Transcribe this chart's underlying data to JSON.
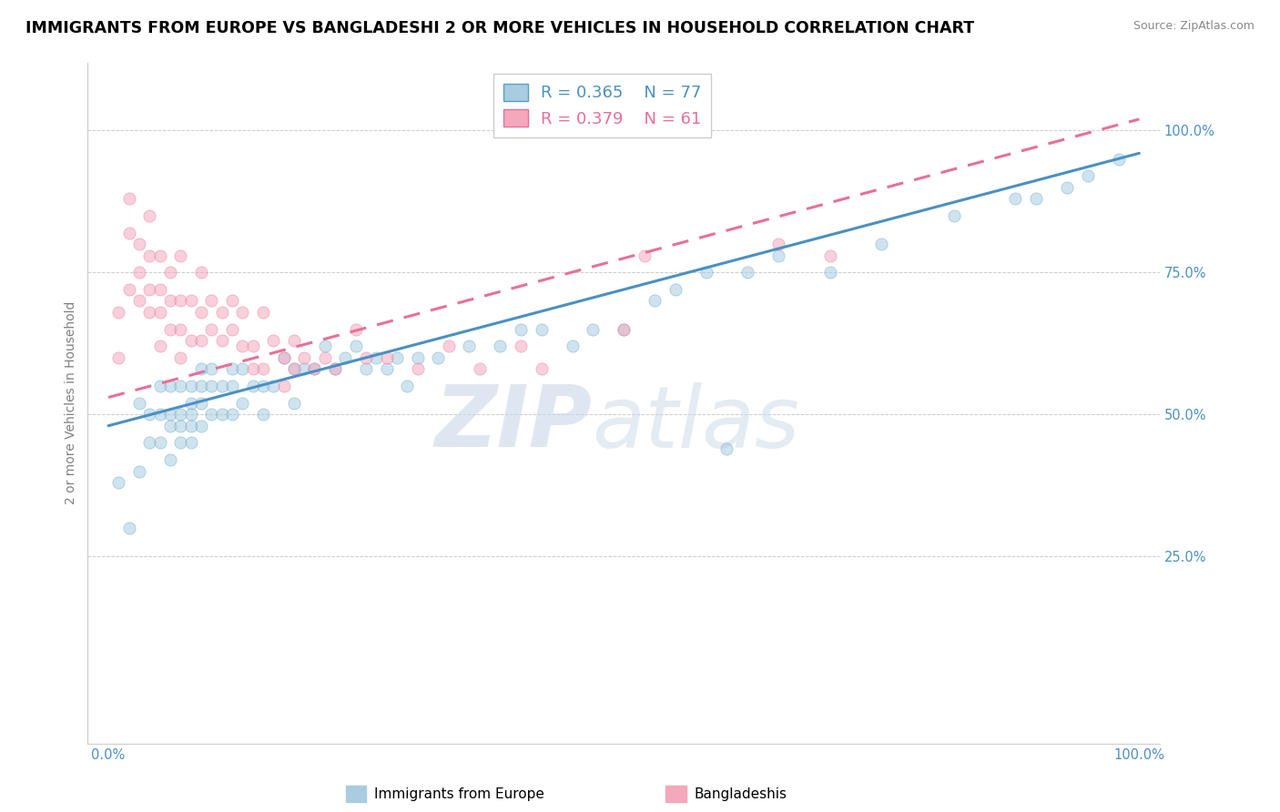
{
  "title": "IMMIGRANTS FROM EUROPE VS BANGLADESHI 2 OR MORE VEHICLES IN HOUSEHOLD CORRELATION CHART",
  "source": "Source: ZipAtlas.com",
  "ylabel": "2 or more Vehicles in Household",
  "xlim": [
    -0.02,
    1.02
  ],
  "ylim": [
    -0.08,
    1.12
  ],
  "xtick_positions": [
    0.0,
    1.0
  ],
  "xtick_labels": [
    "0.0%",
    "100.0%"
  ],
  "ytick_positions": [
    0.25,
    0.5,
    0.75,
    1.0
  ],
  "ytick_labels": [
    "25.0%",
    "50.0%",
    "75.0%",
    "100.0%"
  ],
  "legend_labels": [
    "Immigrants from Europe",
    "Bangladeshis"
  ],
  "blue_color": "#a8cce0",
  "pink_color": "#f4a8bc",
  "blue_edge_color": "#5b9ec9",
  "pink_edge_color": "#e87096",
  "blue_line_color": "#4a90c4",
  "pink_line_color": "#e87096",
  "watermark_zip_color": "#d0dde8",
  "watermark_atlas_color": "#c8d8e8",
  "blue_scatter_x": [
    0.01,
    0.02,
    0.03,
    0.03,
    0.04,
    0.04,
    0.05,
    0.05,
    0.05,
    0.06,
    0.06,
    0.06,
    0.06,
    0.07,
    0.07,
    0.07,
    0.07,
    0.08,
    0.08,
    0.08,
    0.08,
    0.08,
    0.09,
    0.09,
    0.09,
    0.09,
    0.1,
    0.1,
    0.1,
    0.11,
    0.11,
    0.12,
    0.12,
    0.12,
    0.13,
    0.13,
    0.14,
    0.15,
    0.15,
    0.16,
    0.17,
    0.18,
    0.18,
    0.19,
    0.2,
    0.21,
    0.22,
    0.23,
    0.24,
    0.25,
    0.26,
    0.27,
    0.28,
    0.29,
    0.3,
    0.32,
    0.35,
    0.38,
    0.4,
    0.42,
    0.45,
    0.47,
    0.5,
    0.53,
    0.55,
    0.58,
    0.62,
    0.65,
    0.7,
    0.75,
    0.82,
    0.88,
    0.9,
    0.93,
    0.95,
    0.98,
    0.6
  ],
  "blue_scatter_y": [
    0.38,
    0.3,
    0.52,
    0.4,
    0.5,
    0.45,
    0.55,
    0.5,
    0.45,
    0.55,
    0.5,
    0.48,
    0.42,
    0.55,
    0.5,
    0.48,
    0.45,
    0.55,
    0.52,
    0.5,
    0.48,
    0.45,
    0.58,
    0.55,
    0.52,
    0.48,
    0.58,
    0.55,
    0.5,
    0.55,
    0.5,
    0.58,
    0.55,
    0.5,
    0.58,
    0.52,
    0.55,
    0.55,
    0.5,
    0.55,
    0.6,
    0.58,
    0.52,
    0.58,
    0.58,
    0.62,
    0.58,
    0.6,
    0.62,
    0.58,
    0.6,
    0.58,
    0.6,
    0.55,
    0.6,
    0.6,
    0.62,
    0.62,
    0.65,
    0.65,
    0.62,
    0.65,
    0.65,
    0.7,
    0.72,
    0.75,
    0.75,
    0.78,
    0.75,
    0.8,
    0.85,
    0.88,
    0.88,
    0.9,
    0.92,
    0.95,
    0.44
  ],
  "pink_scatter_x": [
    0.01,
    0.01,
    0.02,
    0.02,
    0.02,
    0.03,
    0.03,
    0.03,
    0.04,
    0.04,
    0.04,
    0.04,
    0.05,
    0.05,
    0.05,
    0.05,
    0.06,
    0.06,
    0.06,
    0.07,
    0.07,
    0.07,
    0.07,
    0.08,
    0.08,
    0.09,
    0.09,
    0.09,
    0.1,
    0.1,
    0.11,
    0.11,
    0.12,
    0.12,
    0.13,
    0.13,
    0.14,
    0.14,
    0.15,
    0.15,
    0.16,
    0.17,
    0.17,
    0.18,
    0.18,
    0.19,
    0.2,
    0.21,
    0.22,
    0.24,
    0.25,
    0.27,
    0.3,
    0.33,
    0.36,
    0.4,
    0.42,
    0.5,
    0.52,
    0.65,
    0.7
  ],
  "pink_scatter_y": [
    0.6,
    0.68,
    0.72,
    0.82,
    0.88,
    0.75,
    0.8,
    0.7,
    0.78,
    0.85,
    0.68,
    0.72,
    0.78,
    0.72,
    0.68,
    0.62,
    0.75,
    0.7,
    0.65,
    0.78,
    0.7,
    0.65,
    0.6,
    0.7,
    0.63,
    0.75,
    0.68,
    0.63,
    0.7,
    0.65,
    0.68,
    0.63,
    0.7,
    0.65,
    0.68,
    0.62,
    0.62,
    0.58,
    0.68,
    0.58,
    0.63,
    0.6,
    0.55,
    0.63,
    0.58,
    0.6,
    0.58,
    0.6,
    0.58,
    0.65,
    0.6,
    0.6,
    0.58,
    0.62,
    0.58,
    0.62,
    0.58,
    0.65,
    0.78,
    0.8,
    0.78
  ],
  "blue_line_x0": 0.0,
  "blue_line_x1": 1.0,
  "blue_line_y0": 0.48,
  "blue_line_y1": 0.96,
  "pink_line_x0": 0.0,
  "pink_line_x1": 1.0,
  "pink_line_y0": 0.53,
  "pink_line_y1": 1.02,
  "title_fontsize": 12.5,
  "source_fontsize": 9,
  "axis_label_fontsize": 10,
  "tick_fontsize": 10.5,
  "legend_fontsize": 13,
  "scatter_size": 90,
  "scatter_alpha": 0.55,
  "line_width": 2.2
}
